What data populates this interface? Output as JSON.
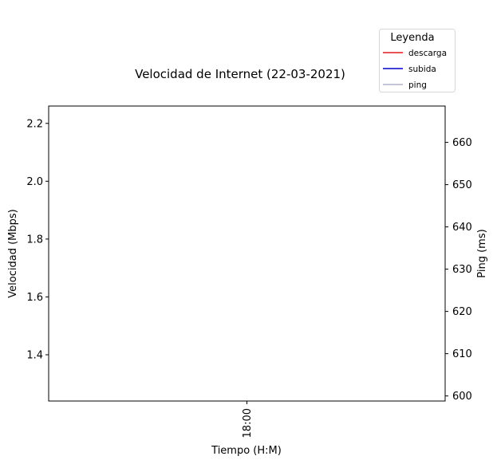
{
  "chart_data": {
    "type": "line",
    "title": "Velocidad de Internet (22-03-2021)",
    "xlabel": "Tiempo (H:M)",
    "ylabel": "Velocidad (Mbps)",
    "y2label": "Ping (ms)",
    "x_ticks": [
      "18:00"
    ],
    "ylim": [
      1.24,
      2.26
    ],
    "y_ticks": [
      1.4,
      1.6,
      1.8,
      2.0,
      2.2
    ],
    "y_tick_labels": [
      "1.4",
      "1.6",
      "1.8",
      "2.0",
      "2.2"
    ],
    "y2lim": [
      598.8,
      668.6
    ],
    "y2_ticks": [
      600,
      610,
      620,
      630,
      640,
      650,
      660
    ],
    "y2_tick_labels": [
      "600",
      "610",
      "620",
      "630",
      "640",
      "650",
      "660"
    ],
    "grid": false,
    "legend": {
      "title": "Leyenda",
      "placement": "top-right, outside plot",
      "entries": [
        {
          "label": "descarga",
          "color": "#e41a1c"
        },
        {
          "label": "subida",
          "color": "#0000cc"
        },
        {
          "label": "ping",
          "color": "#b0b4cc"
        }
      ]
    },
    "series": [
      {
        "name": "descarga",
        "axis": "left",
        "points": []
      },
      {
        "name": "subida",
        "axis": "left",
        "points": []
      },
      {
        "name": "ping",
        "axis": "right",
        "points": []
      }
    ]
  }
}
